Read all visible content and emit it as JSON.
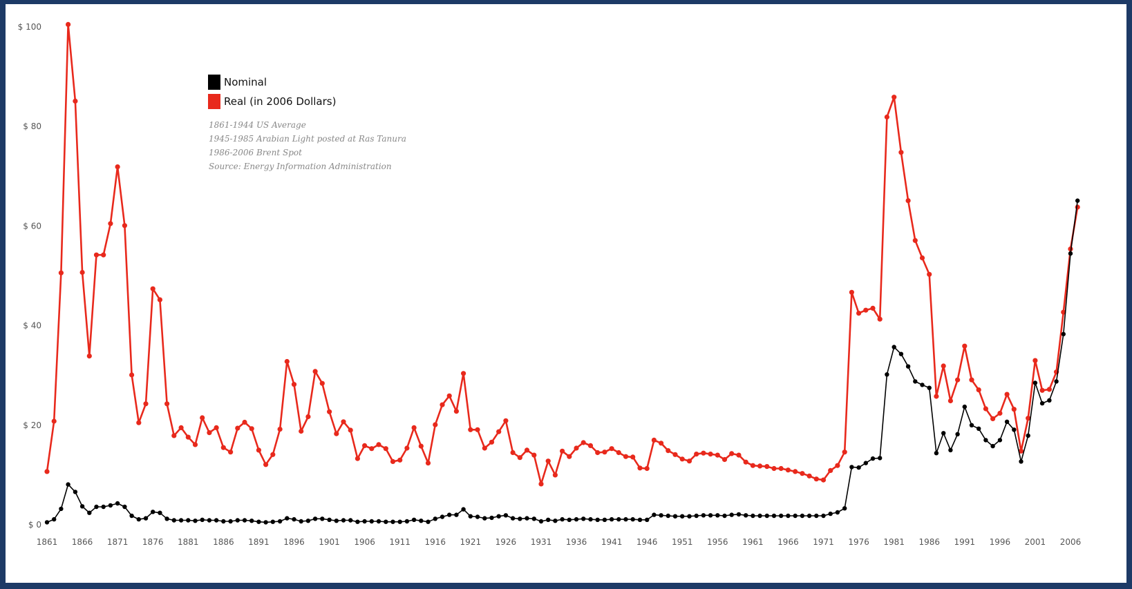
{
  "chart_data": {
    "type": "line",
    "title": "",
    "xlabel": "",
    "ylabel": "",
    "xlim": [
      1861,
      2006
    ],
    "ylim": [
      0,
      100
    ],
    "grid": false,
    "legend_position": "top-left",
    "y_ticks": [
      "$ 0",
      "$ 20",
      "$ 40",
      "$ 60",
      "$ 80",
      "$ 100"
    ],
    "y_tick_values": [
      0,
      20,
      40,
      60,
      80,
      100
    ],
    "x_ticks": [
      "1861",
      "1866",
      "1871",
      "1876",
      "1881",
      "1886",
      "1891",
      "1896",
      "1901",
      "1906",
      "1911",
      "1916",
      "1921",
      "1926",
      "1931",
      "1936",
      "1941",
      "1946",
      "1951",
      "1956",
      "1961",
      "1966",
      "1971",
      "1976",
      "1981",
      "1986",
      "1991",
      "1996",
      "2001",
      "2006"
    ],
    "x_tick_values": [
      1861,
      1866,
      1871,
      1876,
      1881,
      1886,
      1891,
      1896,
      1901,
      1906,
      1911,
      1916,
      1921,
      1926,
      1931,
      1936,
      1941,
      1946,
      1951,
      1956,
      1961,
      1966,
      1971,
      1976,
      1981,
      1986,
      1991,
      1996,
      2001,
      2006
    ],
    "legend": [
      {
        "label": "Nominal",
        "color": "#000000"
      },
      {
        "label": "Real (in 2006 Dollars)",
        "color": "#e8291c"
      }
    ],
    "notes": [
      "1861-1944 US Average",
      "1945-1985 Arabian Light posted at Ras Tanura",
      "1986-2006 Brent Spot",
      "Source: Energy Information Administration"
    ],
    "x_start": 1861,
    "series": [
      {
        "name": "Real (in 2006 Dollars)",
        "color": "#e8291c",
        "values": [
          10.7,
          20.8,
          50.6,
          100.5,
          85.1,
          50.7,
          33.9,
          54.2,
          54.2,
          60.5,
          71.9,
          60.1,
          30.1,
          20.5,
          24.3,
          47.4,
          45.2,
          24.3,
          17.9,
          19.5,
          17.6,
          16.1,
          21.5,
          18.5,
          19.5,
          15.5,
          14.6,
          19.4,
          20.6,
          19.3,
          15.0,
          12.1,
          14.1,
          19.2,
          32.8,
          28.2,
          18.8,
          21.7,
          30.8,
          28.4,
          22.7,
          18.3,
          20.7,
          19.0,
          13.3,
          15.9,
          15.3,
          16.1,
          15.3,
          12.7,
          13.0,
          15.4,
          19.5,
          15.8,
          12.4,
          20.1,
          24.1,
          25.9,
          22.8,
          30.4,
          19.1,
          19.1,
          15.4,
          16.6,
          18.7,
          20.9,
          14.5,
          13.5,
          15.0,
          14.0,
          8.2,
          12.8,
          10.0,
          14.8,
          13.7,
          15.4,
          16.5,
          15.9,
          14.5,
          14.6,
          15.3,
          14.5,
          13.7,
          13.6,
          11.4,
          11.3,
          17.0,
          16.4,
          14.9,
          14.1,
          13.2,
          12.8,
          14.2,
          14.4,
          14.2,
          14.0,
          13.1,
          14.3,
          14.0,
          12.6,
          11.9,
          11.8,
          11.7,
          11.3,
          11.3,
          11.0,
          10.7,
          10.3,
          9.8,
          9.2,
          9.0,
          10.9,
          11.9,
          14.6,
          46.7,
          42.5,
          43.1,
          43.5,
          41.3,
          81.9,
          85.9,
          74.8,
          65.1,
          57.1,
          53.6,
          50.3,
          25.8,
          31.9,
          24.9,
          29.1,
          35.9,
          29.1,
          27.1,
          23.3,
          21.3,
          22.4,
          26.2,
          23.2,
          14.8,
          21.4,
          33.0,
          27.0,
          27.2,
          30.7,
          42.7,
          55.4,
          63.8
        ]
      },
      {
        "name": "Nominal",
        "color": "#000000",
        "values": [
          0.5,
          1.1,
          3.2,
          8.1,
          6.6,
          3.7,
          2.4,
          3.6,
          3.6,
          3.9,
          4.3,
          3.6,
          1.8,
          1.1,
          1.3,
          2.6,
          2.4,
          1.2,
          0.9,
          0.9,
          0.9,
          0.8,
          1.0,
          0.9,
          0.9,
          0.7,
          0.7,
          0.9,
          0.9,
          0.8,
          0.6,
          0.5,
          0.6,
          0.7,
          1.3,
          1.1,
          0.7,
          0.8,
          1.2,
          1.2,
          1.0,
          0.8,
          0.9,
          0.9,
          0.6,
          0.7,
          0.7,
          0.7,
          0.6,
          0.6,
          0.6,
          0.7,
          1.0,
          0.8,
          0.6,
          1.2,
          1.6,
          2.0,
          2.0,
          3.1,
          1.7,
          1.6,
          1.3,
          1.4,
          1.7,
          1.9,
          1.3,
          1.2,
          1.3,
          1.2,
          0.7,
          1.0,
          0.8,
          1.1,
          1.0,
          1.1,
          1.2,
          1.1,
          1.0,
          1.0,
          1.1,
          1.1,
          1.1,
          1.1,
          1.0,
          1.0,
          2.0,
          1.9,
          1.8,
          1.7,
          1.7,
          1.7,
          1.8,
          1.9,
          1.9,
          1.9,
          1.8,
          2.0,
          2.1,
          1.9,
          1.8,
          1.8,
          1.8,
          1.8,
          1.8,
          1.8,
          1.8,
          1.8,
          1.8,
          1.8,
          1.8,
          2.2,
          2.5,
          3.3,
          11.6,
          11.5,
          12.4,
          13.3,
          13.4,
          30.2,
          35.7,
          34.3,
          31.8,
          28.8,
          28.1,
          27.5,
          14.4,
          18.4,
          15.0,
          18.2,
          23.7,
          20.0,
          19.3,
          17.0,
          15.8,
          17.0,
          20.7,
          19.1,
          12.7,
          17.9,
          28.5,
          24.4,
          25.0,
          28.8,
          38.3,
          54.5,
          65.1
        ]
      }
    ]
  }
}
